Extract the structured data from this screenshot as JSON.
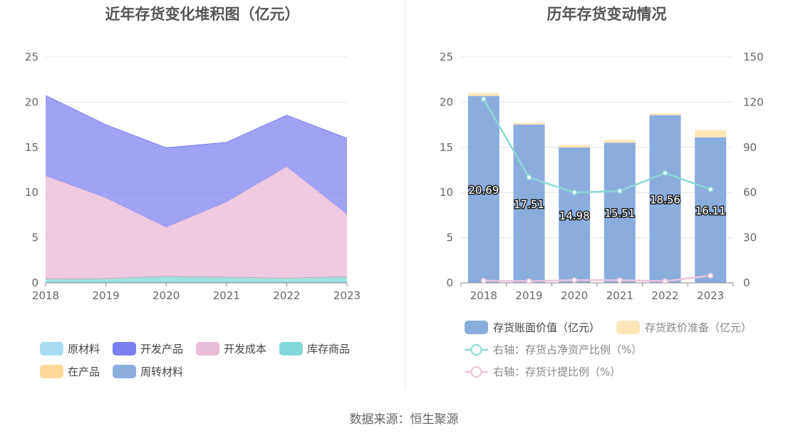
{
  "source_text": "数据来源：恒生聚源",
  "chart_data": [
    {
      "type": "area",
      "stacked": true,
      "title": "近年存货变化堆积图（亿元）",
      "categories": [
        "2018",
        "2019",
        "2020",
        "2021",
        "2022",
        "2023"
      ],
      "ylim": [
        0,
        25
      ],
      "yticks": [
        0,
        5,
        10,
        15,
        20,
        25
      ],
      "grid": true,
      "legend_position": "bottom",
      "series": [
        {
          "name": "原材料",
          "color": "#a8dcf5",
          "values": [
            0.05,
            0.05,
            0.05,
            0.05,
            0.05,
            0.05
          ]
        },
        {
          "name": "开发产品",
          "color": "#7b7ff0",
          "values": [
            8.9,
            8.1,
            8.8,
            6.6,
            5.7,
            8.4
          ]
        },
        {
          "name": "开发成本",
          "color": "#e9bcd9",
          "values": [
            11.4,
            8.9,
            5.4,
            8.3,
            12.3,
            6.9
          ]
        },
        {
          "name": "库存商品",
          "color": "#82d8d8",
          "values": [
            0.3,
            0.35,
            0.6,
            0.5,
            0.4,
            0.55
          ]
        },
        {
          "name": "在产品",
          "color": "#ffd89a",
          "values": [
            0.05,
            0.05,
            0.05,
            0.05,
            0.05,
            0.05
          ]
        },
        {
          "name": "周转材料",
          "color": "#8badde",
          "values": [
            0.05,
            0.05,
            0.05,
            0.05,
            0.05,
            0.05
          ]
        }
      ]
    },
    {
      "type": "bar",
      "stacked": true,
      "title": "历年存货变动情况",
      "categories": [
        "2018",
        "2019",
        "2020",
        "2021",
        "2022",
        "2023"
      ],
      "ylim": [
        0,
        25
      ],
      "yticks": [
        0,
        5,
        10,
        15,
        20,
        25
      ],
      "y2lim": [
        0,
        150
      ],
      "y2ticks": [
        0,
        30,
        60,
        90,
        120,
        150
      ],
      "grid": true,
      "legend_position": "bottom",
      "series": [
        {
          "name": "存货账面价值（亿元）",
          "color": "#8badde",
          "axis": "left",
          "kind": "bar",
          "values": [
            20.69,
            17.51,
            14.98,
            15.51,
            18.56,
            16.11
          ],
          "labels": [
            "20.69",
            "17.51",
            "14.98",
            "15.51",
            "18.56",
            "16.11"
          ]
        },
        {
          "name": "存货跌价准备（亿元）",
          "color": "#ffe6b8",
          "axis": "left",
          "kind": "bar",
          "values": [
            0.3,
            0.2,
            0.3,
            0.3,
            0.2,
            0.8
          ]
        },
        {
          "name": "右轴：存货占净资产比例（%）",
          "color": "#8ad9d6",
          "axis": "right",
          "kind": "line",
          "values": [
            122,
            70,
            60,
            61,
            73,
            62
          ]
        },
        {
          "name": "右轴：存货计提比例（%）",
          "color": "#ecc3dc",
          "axis": "right",
          "kind": "line",
          "values": [
            1.4,
            1.1,
            1.8,
            1.7,
            1.1,
            4.8
          ]
        }
      ]
    }
  ]
}
